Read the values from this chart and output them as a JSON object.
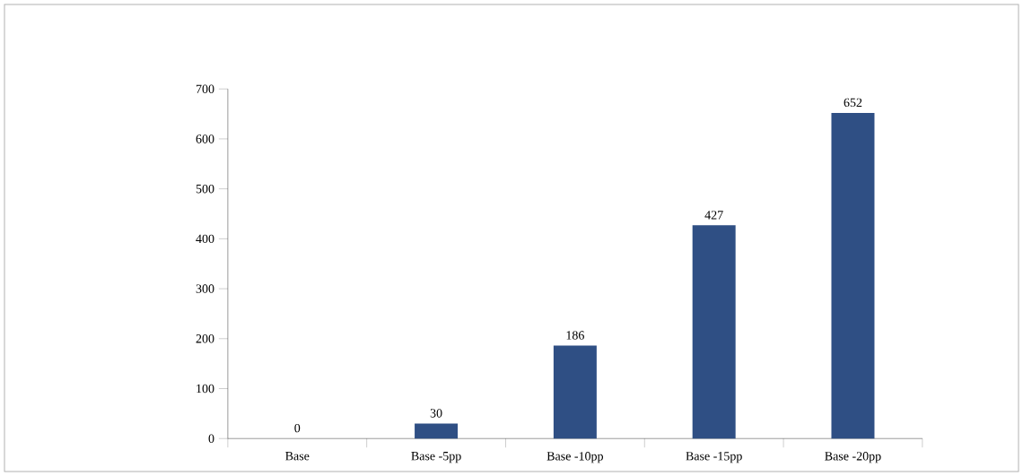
{
  "chart_data": {
    "type": "bar",
    "categories": [
      "Base",
      "Base -5pp",
      "Base -10pp",
      "Base -15pp",
      "Base -20pp"
    ],
    "values": [
      0,
      30,
      186,
      427,
      652
    ],
    "color": "#2f4f84",
    "ylim": [
      0,
      700
    ],
    "yticks": [
      0,
      100,
      200,
      300,
      400,
      500,
      600,
      700
    ],
    "data_labels": true
  }
}
